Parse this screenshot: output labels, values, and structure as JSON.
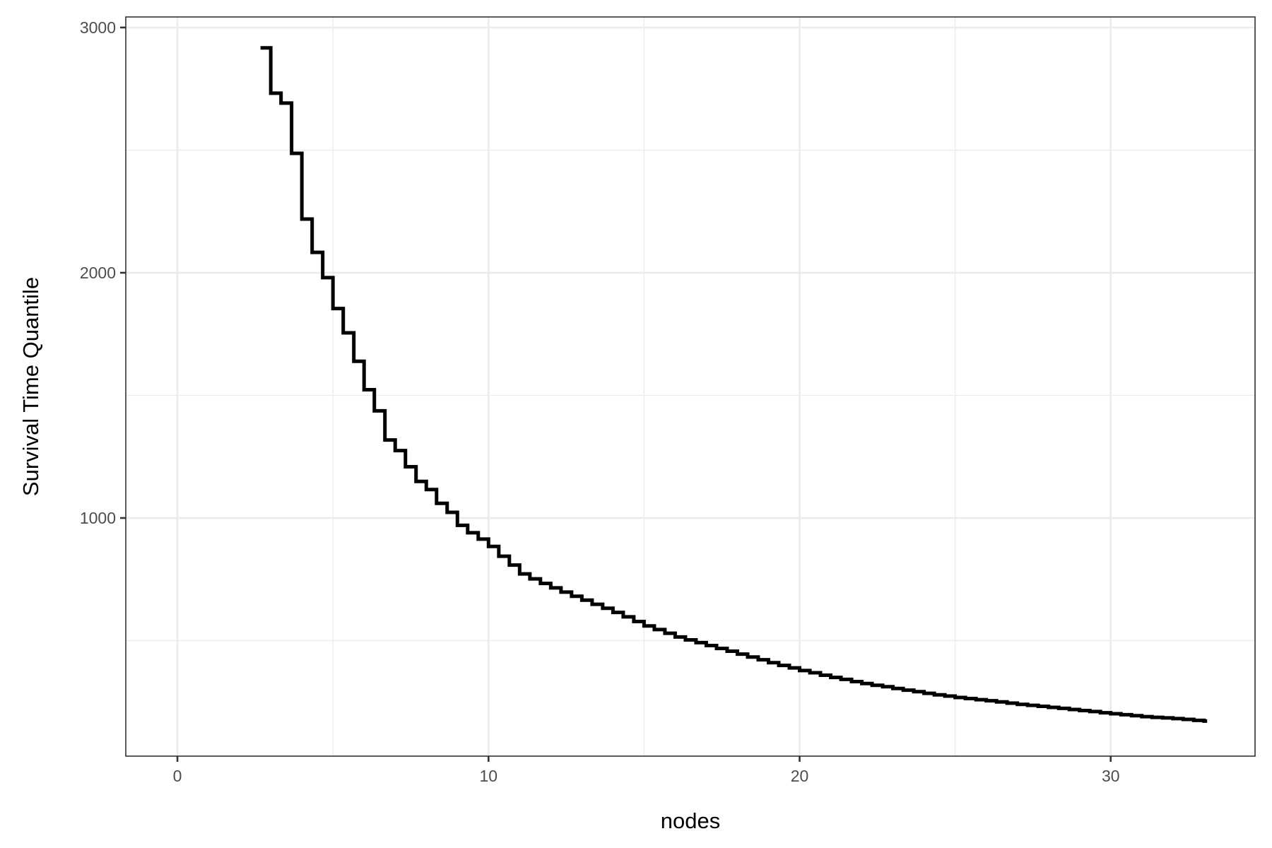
{
  "chart_data": {
    "type": "line",
    "step": true,
    "xlabel": "nodes",
    "ylabel": "Survival Time Quantile",
    "xlim": [
      -1.66,
      34.64
    ],
    "ylim": [
      29,
      3043
    ],
    "x_ticks": [
      0,
      10,
      20,
      30
    ],
    "y_ticks": [
      1000,
      2000,
      3000
    ],
    "x_tick_labels": [
      "0",
      "10",
      "20",
      "30"
    ],
    "y_tick_labels": [
      "1000",
      "2000",
      "3000"
    ],
    "grid": true,
    "legend": "none",
    "colors": {
      "line": "#000000",
      "grid": "#ebebeb",
      "panel_border": "#333333"
    },
    "series": [
      {
        "x": [
          2.67,
          3,
          3.33,
          3.67,
          4,
          4.33,
          4.67,
          5,
          5.33,
          5.67,
          6,
          6.33,
          6.67,
          7,
          7.33,
          7.67,
          8,
          8.33,
          8.67,
          9,
          9.33,
          9.67,
          10,
          10.33,
          10.67,
          11,
          11.33,
          11.67,
          12,
          12.33,
          12.67,
          13,
          13.33,
          13.67,
          14,
          14.33,
          14.67,
          15,
          15.33,
          15.67,
          16,
          16.33,
          16.67,
          17,
          17.33,
          17.67,
          18,
          18.33,
          18.67,
          19,
          19.33,
          19.67,
          20,
          20.33,
          20.67,
          21,
          21.33,
          21.67,
          22,
          22.33,
          22.67,
          23,
          23.33,
          23.67,
          24,
          24.33,
          24.67,
          25,
          25.33,
          25.67,
          26,
          26.33,
          26.67,
          27,
          27.33,
          27.67,
          28,
          28.33,
          28.67,
          29,
          29.33,
          29.67,
          30,
          30.33,
          30.67,
          31,
          31.33,
          31.67,
          32,
          32.33,
          32.67,
          33,
          33.1
        ],
        "y": [
          2917,
          2732,
          2692,
          2487,
          2219,
          2083,
          1980,
          1854,
          1755,
          1639,
          1523,
          1437,
          1318,
          1275,
          1209,
          1149,
          1116,
          1060,
          1023,
          970,
          940,
          914,
          884,
          844,
          808,
          772,
          752,
          733,
          715,
          698,
          681,
          665,
          648,
          632,
          615,
          597,
          578,
          560,
          545,
          530,
          515,
          503,
          492,
          480,
          468,
          457,
          445,
          433,
          422,
          410,
          399,
          389,
          378,
          369,
          359,
          350,
          342,
          333,
          325,
          318,
          312,
          305,
          298,
          292,
          285,
          279,
          274,
          268,
          264,
          259,
          255,
          250,
          245,
          240,
          236,
          232,
          228,
          224,
          219,
          215,
          211,
          206,
          202,
          198,
          194,
          190,
          187,
          185,
          182,
          179,
          175,
          172,
          172
        ]
      }
    ]
  }
}
